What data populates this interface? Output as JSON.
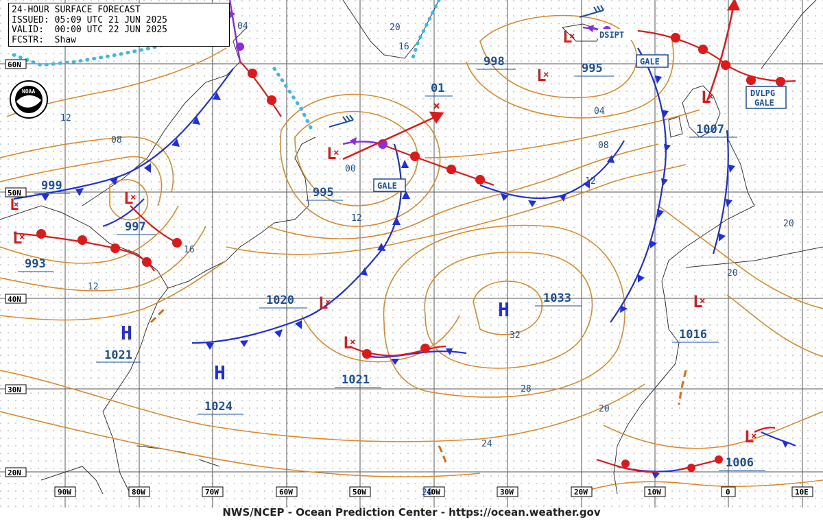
{
  "header": {
    "title": "24-HOUR SURFACE FORECAST",
    "issued": "ISSUED: 05:09 UTC 21 JUN 2025",
    "valid": "VALID:  00:00 UTC 22 JUN 2025",
    "forecaster": "FCSTR:  Shaw"
  },
  "logo": {
    "text": "NOAA"
  },
  "footer": "NWS/NCEP - Ocean Prediction Center - https://ocean.weather.gov",
  "lat_labels": [
    "60N",
    "50N",
    "40N",
    "30N",
    "20N"
  ],
  "lon_labels": [
    "90W",
    "80W",
    "70W",
    "60W",
    "50W",
    "40W",
    "30W",
    "20W",
    "10W",
    "0",
    "10E"
  ],
  "pressure_centers": [
    {
      "type": "H",
      "value": "1021"
    },
    {
      "type": "H",
      "value": "1024"
    },
    {
      "type": "H",
      "value": "1033"
    },
    {
      "type": "L",
      "value": "999"
    },
    {
      "type": "L",
      "value": "997"
    },
    {
      "type": "L",
      "value": "993"
    },
    {
      "type": "L",
      "value": "995"
    },
    {
      "type": "L",
      "value": "1020"
    },
    {
      "type": "L",
      "value": "1021"
    },
    {
      "type": "L",
      "value": "998"
    },
    {
      "type": "L",
      "value": "995"
    },
    {
      "type": "L",
      "value": "1007"
    },
    {
      "type": "L",
      "value": "1016"
    },
    {
      "type": "L",
      "value": "1006"
    },
    {
      "type": "X",
      "value": "01"
    }
  ],
  "isobar_labels": [
    "04",
    "12",
    "08",
    "16",
    "12",
    "00",
    "12",
    "20",
    "16",
    "04",
    "08",
    "12",
    "20",
    "20",
    "32",
    "28",
    "24",
    "20",
    "20"
  ],
  "warnings": [
    "GALE",
    "GALE",
    "DSIPT",
    "DVLPG",
    "GALE"
  ],
  "colors": {
    "isobar": "#d98a2b",
    "cold_front": "#1f2fe0",
    "warm_front": "#e01818",
    "occluded": "#8a2be2",
    "ice": "#3cb8e8",
    "coast": "#333333"
  }
}
